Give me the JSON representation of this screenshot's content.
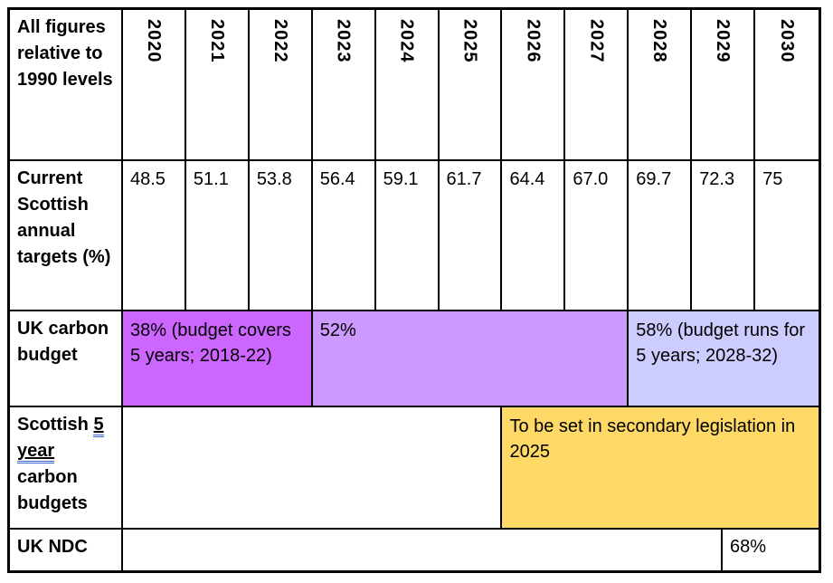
{
  "table": {
    "header": {
      "label": "All figures relative to 1990 levels",
      "years": [
        "2020",
        "2021",
        "2022",
        "2023",
        "2024",
        "2025",
        "2026",
        "2027",
        "2028",
        "2029",
        "2030"
      ]
    },
    "targets": {
      "label": "Current Scottish annual targets (%)",
      "values": [
        "48.5",
        "51.1",
        "53.8",
        "56.4",
        "59.1",
        "61.7",
        "64.4",
        "67.0",
        "69.7",
        "72.3",
        "75"
      ]
    },
    "uk_carbon_budget": {
      "label": "UK carbon budget",
      "cells": [
        {
          "text": "38% (budget covers 5 years; 2018-22)",
          "color": "#cc66ff"
        },
        {
          "text": "52%",
          "color": "#cc99ff"
        },
        {
          "text": "58% (budget runs for 5 years; 2028-32)",
          "color": "#ccccff"
        }
      ]
    },
    "scottish_budgets": {
      "label_pre": "Scottish",
      "label_underlined": "5 year",
      "label_post": "carbon budgets",
      "note": {
        "text": "To be set in secondary legislation in 2025",
        "color": "#ffd966"
      }
    },
    "uk_ndc": {
      "label": "UK NDC",
      "value": "68%"
    }
  },
  "colors": {
    "border": "#000000",
    "grammar_underline": "#3a66d1"
  }
}
